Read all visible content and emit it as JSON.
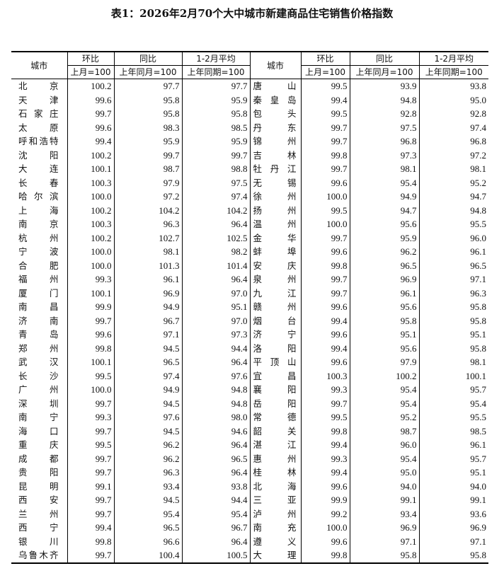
{
  "title": "表1：2026年2月70个大中城市新建商品住宅销售价格指数",
  "headers": {
    "city": "城市",
    "mom": "环比",
    "yoy": "同比",
    "avg": "1-2月平均",
    "mom_base": "上月=100",
    "yoy_base": "上年同月=100",
    "avg_base": "上年同期=100"
  },
  "left_rows": [
    [
      "北京",
      "100.2",
      "97.7",
      "97.7"
    ],
    [
      "天津",
      "99.6",
      "95.8",
      "95.9"
    ],
    [
      "石家庄",
      "99.7",
      "95.8",
      "95.8"
    ],
    [
      "太原",
      "99.6",
      "98.3",
      "98.5"
    ],
    [
      "呼和浩特",
      "99.4",
      "95.9",
      "95.9"
    ],
    [
      "沈阳",
      "100.2",
      "99.7",
      "99.7"
    ],
    [
      "大连",
      "100.1",
      "98.7",
      "98.8"
    ],
    [
      "长春",
      "100.3",
      "97.9",
      "97.5"
    ],
    [
      "哈尔滨",
      "100.0",
      "97.2",
      "97.4"
    ],
    [
      "上海",
      "100.2",
      "104.2",
      "104.2"
    ],
    [
      "南京",
      "100.3",
      "96.3",
      "96.4"
    ],
    [
      "杭州",
      "100.2",
      "102.7",
      "102.5"
    ],
    [
      "宁波",
      "100.0",
      "98.1",
      "98.2"
    ],
    [
      "合肥",
      "100.0",
      "101.3",
      "101.4"
    ],
    [
      "福州",
      "99.3",
      "96.1",
      "96.4"
    ],
    [
      "厦门",
      "100.1",
      "96.9",
      "97.0"
    ],
    [
      "南昌",
      "99.9",
      "94.9",
      "95.1"
    ],
    [
      "济南",
      "99.7",
      "96.7",
      "97.0"
    ],
    [
      "青岛",
      "99.6",
      "97.1",
      "97.3"
    ],
    [
      "郑州",
      "99.8",
      "94.5",
      "94.4"
    ],
    [
      "武汉",
      "100.1",
      "96.5",
      "96.4"
    ],
    [
      "长沙",
      "99.5",
      "97.4",
      "97.6"
    ],
    [
      "广州",
      "100.0",
      "94.9",
      "94.8"
    ],
    [
      "深圳",
      "99.7",
      "94.5",
      "94.8"
    ],
    [
      "南宁",
      "99.3",
      "97.6",
      "98.0"
    ],
    [
      "海口",
      "99.7",
      "94.5",
      "94.6"
    ],
    [
      "重庆",
      "99.5",
      "96.2",
      "96.4"
    ],
    [
      "成都",
      "99.7",
      "96.2",
      "96.5"
    ],
    [
      "贵阳",
      "99.7",
      "96.3",
      "96.4"
    ],
    [
      "昆明",
      "99.1",
      "93.4",
      "93.8"
    ],
    [
      "西安",
      "99.7",
      "94.5",
      "94.4"
    ],
    [
      "兰州",
      "99.7",
      "95.4",
      "95.4"
    ],
    [
      "西宁",
      "99.4",
      "96.5",
      "96.7"
    ],
    [
      "银川",
      "99.8",
      "96.6",
      "96.4"
    ],
    [
      "乌鲁木齐",
      "99.7",
      "100.4",
      "100.5"
    ]
  ],
  "right_rows": [
    [
      "唐山",
      "99.5",
      "93.9",
      "93.8"
    ],
    [
      "秦皇岛",
      "99.4",
      "94.8",
      "95.0"
    ],
    [
      "包头",
      "99.5",
      "92.8",
      "92.8"
    ],
    [
      "丹东",
      "99.7",
      "97.5",
      "97.4"
    ],
    [
      "锦州",
      "99.7",
      "96.8",
      "96.8"
    ],
    [
      "吉林",
      "99.8",
      "97.3",
      "97.2"
    ],
    [
      "牡丹江",
      "99.7",
      "98.1",
      "98.1"
    ],
    [
      "无锡",
      "99.6",
      "95.4",
      "95.2"
    ],
    [
      "徐州",
      "100.0",
      "94.9",
      "94.7"
    ],
    [
      "扬州",
      "99.5",
      "94.7",
      "94.8"
    ],
    [
      "温州",
      "100.0",
      "95.6",
      "95.5"
    ],
    [
      "金华",
      "99.7",
      "95.9",
      "96.0"
    ],
    [
      "蚌埠",
      "99.6",
      "96.2",
      "96.1"
    ],
    [
      "安庆",
      "99.8",
      "96.5",
      "96.5"
    ],
    [
      "泉州",
      "99.7",
      "96.9",
      "97.1"
    ],
    [
      "九江",
      "99.7",
      "96.1",
      "96.3"
    ],
    [
      "赣州",
      "99.6",
      "95.6",
      "95.8"
    ],
    [
      "烟台",
      "99.4",
      "95.8",
      "95.8"
    ],
    [
      "济宁",
      "99.6",
      "95.1",
      "95.1"
    ],
    [
      "洛阳",
      "99.4",
      "95.6",
      "95.8"
    ],
    [
      "平顶山",
      "99.6",
      "97.9",
      "98.1"
    ],
    [
      "宜昌",
      "100.3",
      "100.2",
      "100.1"
    ],
    [
      "襄阳",
      "99.3",
      "95.4",
      "95.7"
    ],
    [
      "岳阳",
      "99.7",
      "95.4",
      "95.4"
    ],
    [
      "常德",
      "99.5",
      "95.2",
      "95.5"
    ],
    [
      "韶关",
      "99.8",
      "98.7",
      "98.5"
    ],
    [
      "湛江",
      "99.4",
      "96.0",
      "96.1"
    ],
    [
      "惠州",
      "99.3",
      "95.4",
      "95.7"
    ],
    [
      "桂林",
      "99.4",
      "95.0",
      "95.1"
    ],
    [
      "北海",
      "99.6",
      "94.0",
      "94.0"
    ],
    [
      "三亚",
      "99.9",
      "99.1",
      "99.1"
    ],
    [
      "泸州",
      "99.2",
      "93.4",
      "93.6"
    ],
    [
      "南充",
      "100.0",
      "96.9",
      "96.9"
    ],
    [
      "遵义",
      "99.6",
      "97.1",
      "97.1"
    ],
    [
      "大理",
      "99.8",
      "95.8",
      "95.8"
    ]
  ]
}
